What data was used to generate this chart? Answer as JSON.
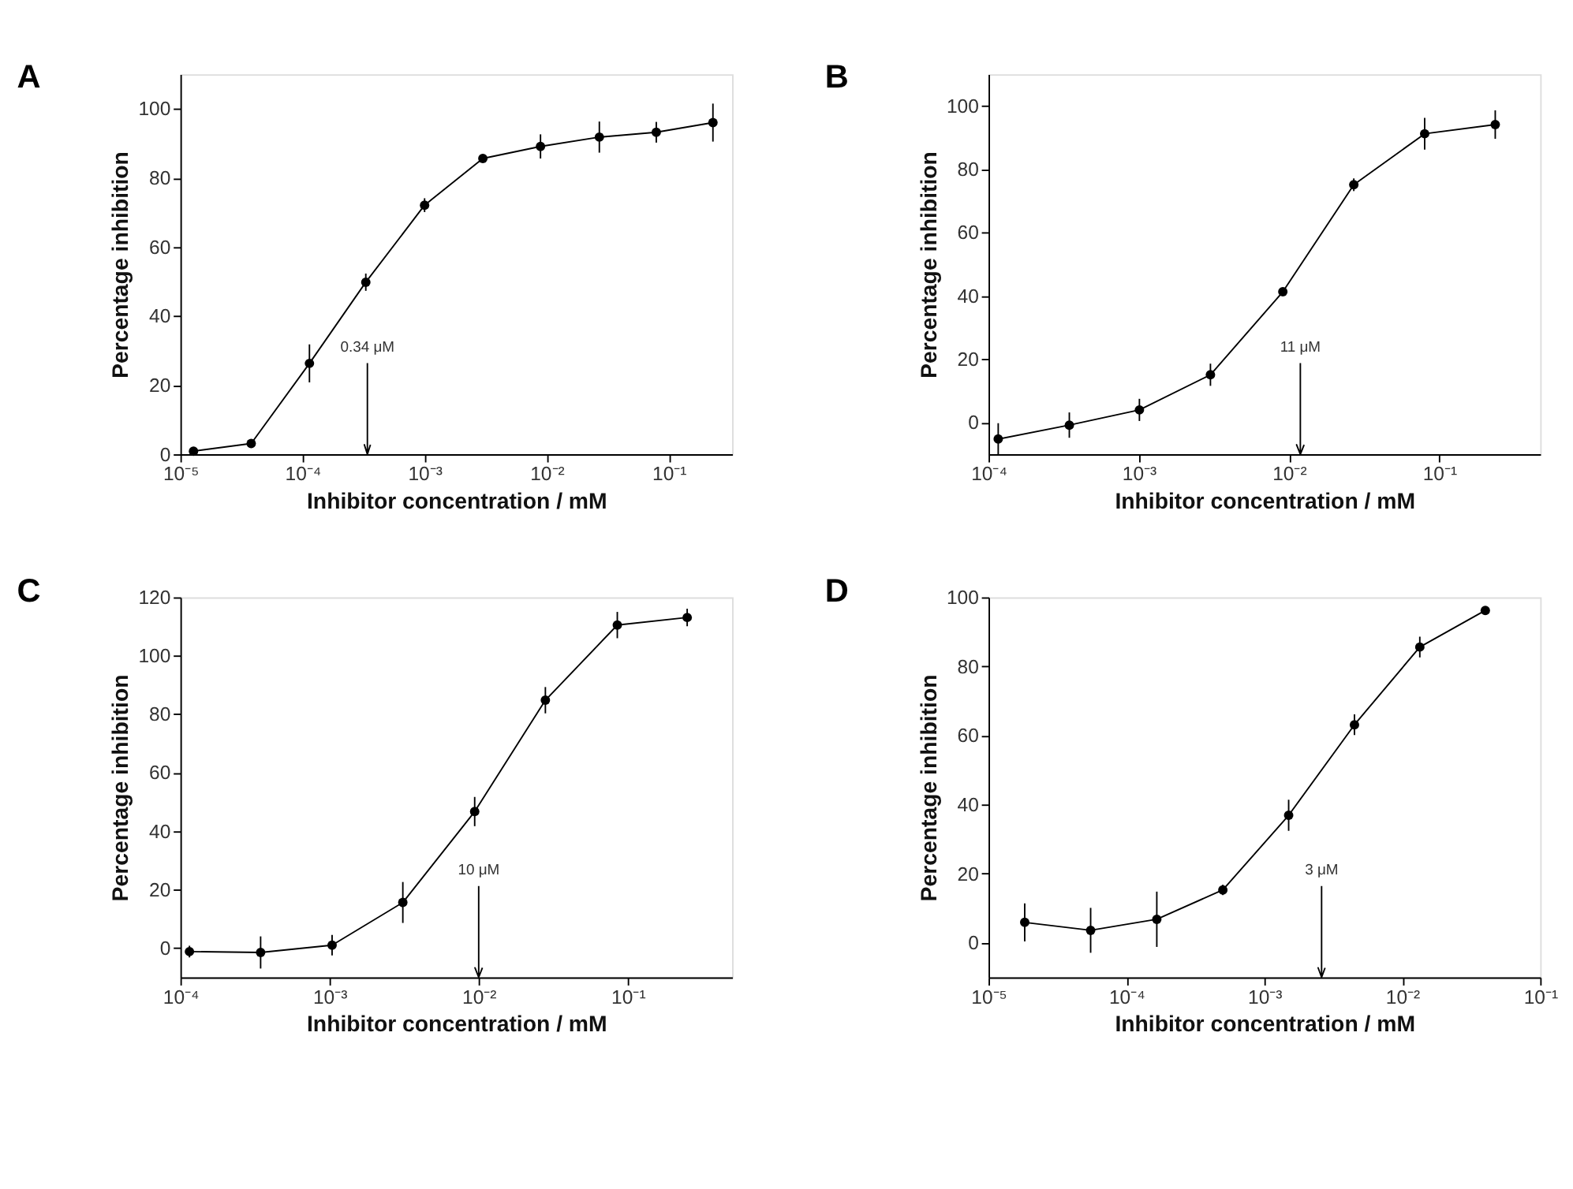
{
  "chart_data": [
    {
      "type": "line",
      "title": "A",
      "xlabel": "Inhibitor concentration / mM",
      "ylabel": "Percentage inhibition",
      "log": "x",
      "grid": false,
      "marker": "circle",
      "line_style": "solid",
      "x": [
        1.28e-05,
        3.8e-05,
        0.000114,
        0.00033,
        0.001,
        0.003,
        0.0089,
        0.027,
        0.079,
        0.23
      ],
      "series": [
        {
          "color": "#000000",
          "values": [
            0.9,
            3.1,
            26.3,
            49.8,
            72.1,
            85.6,
            89.1,
            91.8,
            93.2,
            96
          ],
          "errors": [
            null,
            null,
            5.5,
            2.5,
            2,
            1,
            3.5,
            4.5,
            3,
            5.5
          ]
        }
      ],
      "xlim": [
        1e-05,
        0.33
      ],
      "xticks": [
        {
          "value": 1e-05,
          "label": "10⁻⁵"
        },
        {
          "value": 0.0001,
          "label": "10⁻⁴"
        },
        {
          "value": 0.001,
          "label": "10⁻³"
        },
        {
          "value": 0.01,
          "label": "10⁻²"
        },
        {
          "value": 0.1,
          "label": "10⁻¹"
        }
      ],
      "ylim": [
        0,
        110
      ],
      "yticks": [
        0,
        20,
        40,
        60,
        80,
        100
      ],
      "ref_lines": [
        {
          "axis": "x",
          "value": 0.00034,
          "label": "0.34 μM"
        }
      ]
    },
    {
      "type": "line",
      "title": "B",
      "xlabel": "Inhibitor concentration / mM",
      "ylabel": "Percentage inhibition",
      "log": "x",
      "grid": false,
      "marker": "circle",
      "line_style": "solid",
      "x": [
        0.000116,
        0.000345,
        0.00101,
        0.003,
        0.0091,
        0.027,
        0.08,
        0.236
      ],
      "series": [
        {
          "color": "#000000",
          "values": [
            -5.2,
            -0.8,
            4.0,
            15.1,
            41.3,
            75.1,
            91.2,
            94.1
          ],
          "errors": [
            5,
            4,
            3.5,
            3.5,
            1,
            2,
            5,
            4.5
          ]
        }
      ],
      "xlim": [
        0.0001,
        0.47
      ],
      "xticks": [
        {
          "value": 0.0001,
          "label": "10⁻⁴"
        },
        {
          "value": 0.001,
          "label": "10⁻³"
        },
        {
          "value": 0.01,
          "label": "10⁻²"
        },
        {
          "value": 0.1,
          "label": "10⁻¹"
        }
      ],
      "ylim": [
        -10,
        110
      ],
      "yticks": [
        0,
        20,
        40,
        60,
        80,
        100
      ],
      "ref_lines": [
        {
          "axis": "x",
          "value": 0.0119,
          "label": "11 μM"
        }
      ]
    },
    {
      "type": "line",
      "title": "C",
      "xlabel": "Inhibitor concentration / mM",
      "ylabel": "Percentage inhibition",
      "log": "x",
      "grid": false,
      "marker": "circle",
      "line_style": "solid",
      "x": [
        0.000115,
        0.000345,
        0.00104,
        0.0031,
        0.0094,
        0.028,
        0.085,
        0.25
      ],
      "series": [
        {
          "color": "#000000",
          "values": [
            -1.2,
            -1.5,
            1.0,
            15.6,
            46.7,
            84.8,
            110.5,
            113.1
          ],
          "errors": [
            2,
            5.5,
            3.5,
            7,
            5,
            4.5,
            4.5,
            3
          ]
        }
      ],
      "xlim": [
        0.0001,
        0.5
      ],
      "xticks": [
        {
          "value": 0.0001,
          "label": "10⁻⁴"
        },
        {
          "value": 0.001,
          "label": "10⁻³"
        },
        {
          "value": 0.01,
          "label": "10⁻²"
        },
        {
          "value": 0.1,
          "label": "10⁻¹"
        }
      ],
      "ylim": [
        -10,
        120
      ],
      "yticks": [
        0,
        20,
        40,
        60,
        80,
        100,
        120
      ],
      "ref_lines": [
        {
          "axis": "x",
          "value": 0.01,
          "label": "10 μM"
        }
      ]
    },
    {
      "type": "line",
      "title": "D",
      "xlabel": "Inhibitor concentration / mM",
      "ylabel": "Percentage inhibition",
      "log": "x",
      "grid": false,
      "marker": "circle",
      "line_style": "solid",
      "x": [
        1.83e-05,
        5.5e-05,
        0.000166,
        0.0005,
        0.0015,
        0.0045,
        0.0134,
        0.04
      ],
      "series": [
        {
          "color": "#000000",
          "values": [
            5.9,
            3.6,
            6.8,
            15.3,
            36.9,
            63.1,
            85.6,
            96.2
          ],
          "errors": [
            5.5,
            6.5,
            8,
            1.5,
            4.5,
            3,
            3,
            null
          ]
        }
      ],
      "xlim": [
        1e-05,
        0.1
      ],
      "xticks": [
        {
          "value": 1e-05,
          "label": "10⁻⁵"
        },
        {
          "value": 0.0001,
          "label": "10⁻⁴"
        },
        {
          "value": 0.001,
          "label": "10⁻³"
        },
        {
          "value": 0.01,
          "label": "10⁻²"
        },
        {
          "value": 0.1,
          "label": "10⁻¹"
        }
      ],
      "ylim": [
        -10,
        100
      ],
      "yticks": [
        0,
        20,
        40,
        60,
        80,
        100
      ],
      "ref_lines": [
        {
          "axis": "x",
          "value": 0.0026,
          "label": "3 μM"
        }
      ]
    }
  ]
}
